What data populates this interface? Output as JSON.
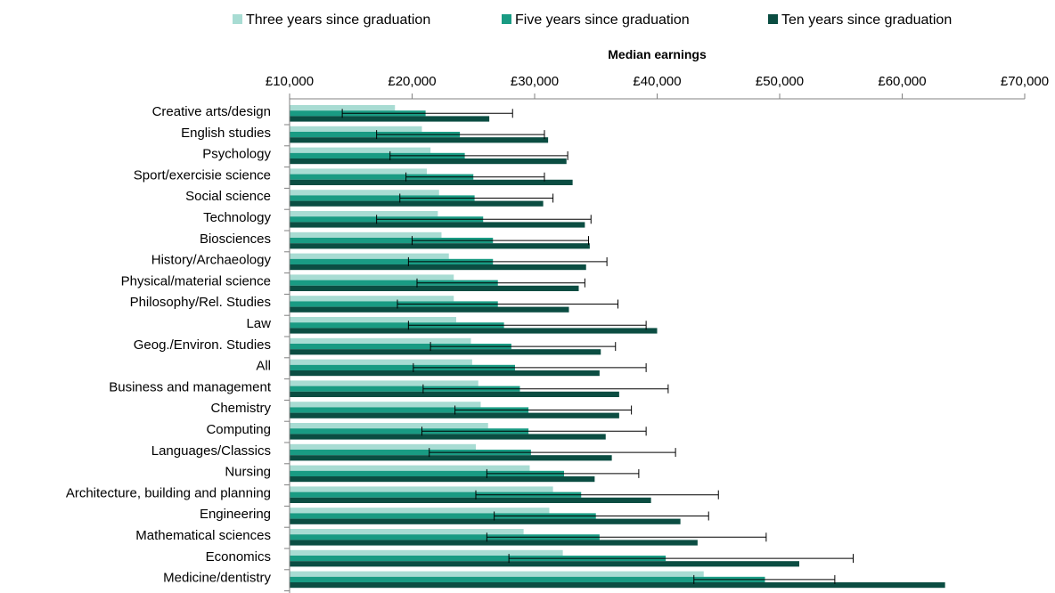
{
  "chart_data": {
    "type": "bar",
    "orientation": "horizontal",
    "xlabel": "Median earnings",
    "xlim": [
      10000,
      70000
    ],
    "xticks": [
      "£10,000",
      "£20,000",
      "£30,000",
      "£40,000",
      "£50,000",
      "£60,000",
      "£70,000"
    ],
    "legend_position": "top",
    "categories": [
      "Creative arts/design",
      "English studies",
      "Psychology",
      "Sport/exercisie science",
      "Social science",
      "Technology",
      "Biosciences",
      "History/Archaeology",
      "Physical/material science",
      "Philosophy/Rel. Studies",
      "Law",
      "Geog./Environ. Studies",
      "All",
      "Business and management",
      "Chemistry",
      "Computing",
      "Languages/Classics",
      "Nursing",
      "Architecture, building and planning",
      "Engineering",
      "Mathematical sciences",
      "Economics",
      "Medicine/dentistry"
    ],
    "series": [
      {
        "name": "Three years since graduation",
        "color": "#a8dcd3",
        "values": [
          18600,
          20800,
          21500,
          21200,
          22200,
          22100,
          22400,
          23000,
          23400,
          23400,
          23600,
          24800,
          24900,
          25400,
          25600,
          26200,
          25200,
          29600,
          31500,
          31200,
          29100,
          32300,
          43800
        ]
      },
      {
        "name": "Five years since graduation",
        "color": "#199b83",
        "values": [
          21100,
          23900,
          24300,
          25000,
          25100,
          25800,
          26600,
          26600,
          27000,
          27000,
          27500,
          28100,
          28400,
          28800,
          29500,
          29500,
          29700,
          32400,
          33800,
          35000,
          35300,
          40700,
          48800
        ]
      },
      {
        "name": "Ten years since graduation",
        "color": "#0b4d42",
        "values": [
          26300,
          31100,
          32600,
          33100,
          30700,
          34100,
          34500,
          34200,
          33600,
          32800,
          40000,
          35400,
          35300,
          36900,
          36900,
          35800,
          36300,
          34900,
          39500,
          41900,
          43300,
          51600,
          63500
        ]
      }
    ],
    "error_bars": [
      [
        14300,
        28200
      ],
      [
        17100,
        30800
      ],
      [
        18200,
        32700
      ],
      [
        19500,
        30800
      ],
      [
        19000,
        31500
      ],
      [
        17100,
        34600
      ],
      [
        20000,
        34400
      ],
      [
        19700,
        35900
      ],
      [
        20400,
        34100
      ],
      [
        18800,
        36800
      ],
      [
        19700,
        39100
      ],
      [
        21500,
        36600
      ],
      [
        20100,
        39100
      ],
      [
        20900,
        40900
      ],
      [
        23500,
        37900
      ],
      [
        20800,
        39100
      ],
      [
        21400,
        41500
      ],
      [
        26100,
        38500
      ],
      [
        25200,
        45000
      ],
      [
        26700,
        44200
      ],
      [
        26100,
        48900
      ],
      [
        27900,
        56000
      ],
      [
        43000,
        54500
      ]
    ]
  }
}
